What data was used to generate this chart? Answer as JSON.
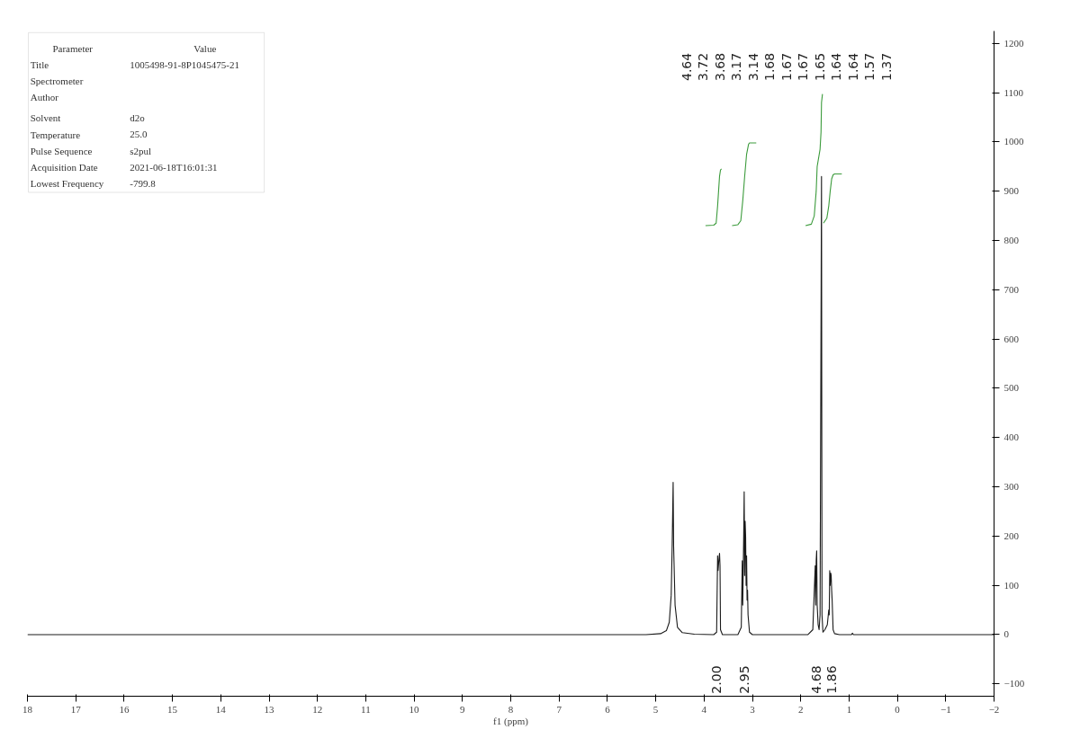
{
  "chart_data": {
    "type": "line",
    "xlabel": "f1 (ppm)",
    "xlim": [
      18,
      -2
    ],
    "xticks": [
      18,
      17,
      16,
      15,
      14,
      13,
      12,
      11,
      10,
      9,
      8,
      7,
      6,
      5,
      4,
      3,
      2,
      1,
      0,
      -1,
      -2
    ],
    "ylim": [
      -125,
      1225
    ],
    "yticks": [
      -100,
      0,
      100,
      200,
      300,
      400,
      500,
      600,
      700,
      800,
      900,
      1000,
      1100,
      1200
    ],
    "grid": false,
    "marker": "none",
    "line_style": "solid",
    "series": [
      {
        "color": "#1a1a1a",
        "x": [
          18,
          5.2,
          4.9,
          4.78,
          4.72,
          4.68,
          4.66,
          4.64,
          4.63,
          4.6,
          4.55,
          4.45,
          4.2,
          3.8,
          3.74,
          3.72,
          3.71,
          3.695,
          3.68,
          3.67,
          3.66,
          3.62,
          3.3,
          3.23,
          3.21,
          3.2,
          3.18,
          3.17,
          3.16,
          3.15,
          3.14,
          3.13,
          3.12,
          3.11,
          3.1,
          3.09,
          3.06,
          3.0,
          1.85,
          1.75,
          1.7,
          1.69,
          1.68,
          1.67,
          1.66,
          1.65,
          1.64,
          1.62,
          1.6,
          1.57,
          1.56,
          1.54,
          1.5,
          1.45,
          1.42,
          1.41,
          1.4,
          1.39,
          1.38,
          1.37,
          1.36,
          1.35,
          1.34,
          1.33,
          1.3,
          1.2,
          0.95,
          0.93,
          0.91,
          -2
        ],
        "values": [
          0,
          0,
          2,
          8,
          25,
          80,
          180,
          309,
          180,
          60,
          15,
          4,
          1,
          0,
          5,
          160,
          130,
          150,
          165,
          140,
          10,
          0,
          0,
          15,
          150,
          60,
          200,
          290,
          120,
          230,
          200,
          100,
          160,
          70,
          90,
          40,
          5,
          0,
          0,
          10,
          140,
          60,
          150,
          170,
          60,
          40,
          20,
          10,
          40,
          930,
          40,
          5,
          10,
          20,
          50,
          40,
          130,
          100,
          125,
          120,
          90,
          70,
          40,
          10,
          2,
          0,
          0,
          3,
          0,
          0
        ]
      },
      {
        "color": "#3c9b3c",
        "x": [
          3.97,
          3.8,
          3.75,
          3.72,
          3.7,
          3.68,
          3.66,
          3.64
        ],
        "values": [
          830,
          831,
          835,
          870,
          900,
          930,
          943,
          945
        ]
      },
      {
        "color": "#3c9b3c",
        "x": [
          3.42,
          3.3,
          3.24,
          3.2,
          3.16,
          3.12,
          3.08,
          3.06,
          2.92
        ],
        "values": [
          830,
          832,
          840,
          880,
          930,
          975,
          995,
          998,
          998
        ]
      },
      {
        "color": "#3c9b3c",
        "x": [
          1.9,
          1.78,
          1.72,
          1.68,
          1.66,
          1.6,
          1.58,
          1.57,
          1.55
        ],
        "values": [
          830,
          833,
          850,
          900,
          950,
          985,
          1020,
          1080,
          1097
        ]
      },
      {
        "color": "#3c9b3c",
        "x": [
          1.53,
          1.46,
          1.42,
          1.39,
          1.36,
          1.33,
          1.3,
          1.15
        ],
        "values": [
          835,
          845,
          870,
          900,
          925,
          933,
          935,
          935
        ]
      }
    ],
    "annotations": [
      "Parameter\tValue",
      "Title\t1005498-91-8P1045475-21",
      "Spectrometer\t",
      "Author\t",
      "Solvent\td2o",
      "Temperature\t25.0",
      "Pulse Sequence\ts2pul",
      "Acquisition Date\t2021-06-18T16:01:31",
      "Lowest Frequency\t-799.8",
      "4.64",
      "3.72",
      "3.68",
      "3.17",
      "3.14",
      "1.68",
      "1.67",
      "1.67",
      "1.65",
      "1.64",
      "1.64",
      "1.57",
      "1.37",
      "2.00",
      "2.95",
      "4.68",
      "1.86"
    ]
  }
}
